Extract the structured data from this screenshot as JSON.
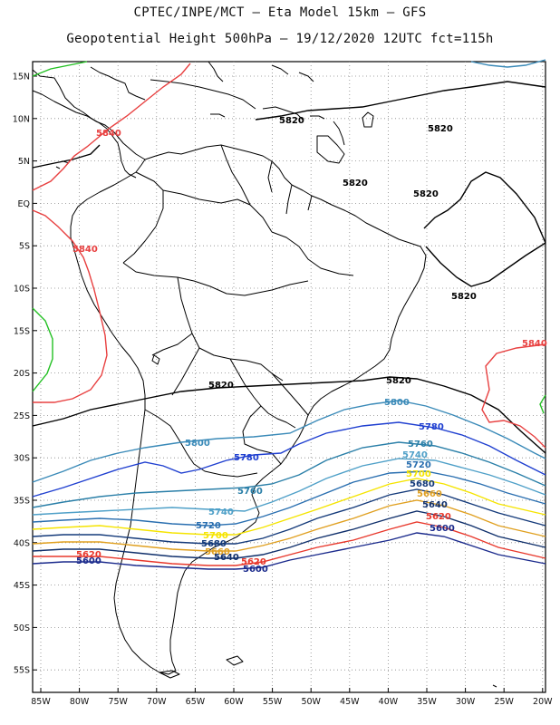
{
  "header": {
    "line1": "CPTEC/INPE/MCT –  Eta Model 15km – GFS",
    "line2": "Geopotential Height 500hPa – 19/12/2020 12UTC fct=115h"
  },
  "axes": {
    "lat_labels": [
      "15N",
      "10N",
      "5N",
      "EQ",
      "5S",
      "10S",
      "15S",
      "20S",
      "25S",
      "30S",
      "35S",
      "40S",
      "45S",
      "50S",
      "55S"
    ],
    "lon_labels": [
      "85W",
      "80W",
      "75W",
      "70W",
      "65W",
      "60W",
      "55W",
      "50W",
      "45W",
      "40W",
      "35W",
      "30W",
      "25W",
      "20W"
    ]
  },
  "map": {
    "grid": "dotted",
    "region": "South America",
    "contour_colors": {
      "5600": "#1a2a8c",
      "5620": "#e8382c",
      "5640": "#0f2f6b",
      "5660": "#e0a020",
      "5680": "#143a7a",
      "5700": "#f5e400",
      "5720": "#2a6fb0",
      "5740": "#4fa0c8",
      "5760": "#2a7fa8",
      "5780": "#1f3fd0",
      "5800": "#3a8ab8",
      "5820": "#000000",
      "5840": "#e84040",
      "5860": "#22c022"
    }
  },
  "contour_labels": [
    {
      "text": "5820",
      "color": "#000000"
    },
    {
      "text": "5820",
      "color": "#000000"
    },
    {
      "text": "5820",
      "color": "#000000"
    },
    {
      "text": "5820",
      "color": "#000000"
    },
    {
      "text": "5820",
      "color": "#000000"
    },
    {
      "text": "5820",
      "color": "#000000"
    },
    {
      "text": "5820",
      "color": "#000000"
    },
    {
      "text": "5840",
      "color": "#e84040"
    },
    {
      "text": "5840",
      "color": "#e84040"
    },
    {
      "text": "5840",
      "color": "#e84040"
    },
    {
      "text": "5800",
      "color": "#3a8ab8"
    },
    {
      "text": "5800",
      "color": "#3a8ab8"
    },
    {
      "text": "5780",
      "color": "#1f3fd0"
    },
    {
      "text": "5780",
      "color": "#1f3fd0"
    },
    {
      "text": "5760",
      "color": "#2a7fa8"
    },
    {
      "text": "5760",
      "color": "#2a7fa8"
    },
    {
      "text": "5740",
      "color": "#4fa0c8"
    },
    {
      "text": "5740",
      "color": "#4fa0c8"
    },
    {
      "text": "5720",
      "color": "#2a6fb0"
    },
    {
      "text": "5720",
      "color": "#2a6fb0"
    },
    {
      "text": "5700",
      "color": "#f5e400"
    },
    {
      "text": "5700",
      "color": "#f5e400"
    },
    {
      "text": "5680",
      "color": "#143a7a"
    },
    {
      "text": "5680",
      "color": "#143a7a"
    },
    {
      "text": "5660",
      "color": "#e0a020"
    },
    {
      "text": "5660",
      "color": "#e0a020"
    },
    {
      "text": "5640",
      "color": "#0f2f6b"
    },
    {
      "text": "5640",
      "color": "#0f2f6b"
    },
    {
      "text": "5620",
      "color": "#e8382c"
    },
    {
      "text": "5620",
      "color": "#e8382c"
    },
    {
      "text": "5620",
      "color": "#e8382c"
    },
    {
      "text": "5600",
      "color": "#1a2a8c"
    },
    {
      "text": "5600",
      "color": "#1a2a8c"
    },
    {
      "text": "5600",
      "color": "#1a2a8c"
    }
  ]
}
